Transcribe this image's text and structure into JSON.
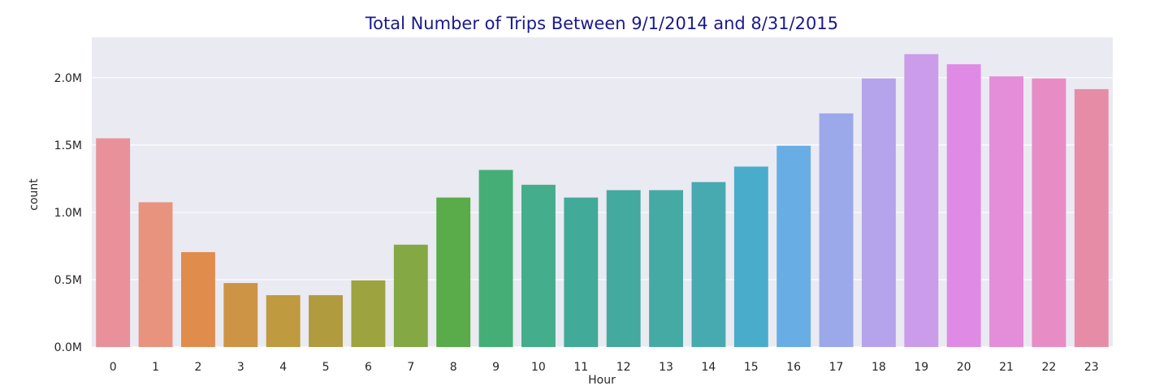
{
  "chart_data": {
    "type": "bar",
    "title": "Total Number of Trips Between 9/1/2014 and 8/31/2015",
    "xlabel": "Hour",
    "ylabel": "count",
    "categories": [
      "0",
      "1",
      "2",
      "3",
      "4",
      "5",
      "6",
      "7",
      "8",
      "9",
      "10",
      "11",
      "12",
      "13",
      "14",
      "15",
      "16",
      "17",
      "18",
      "19",
      "20",
      "21",
      "22",
      "23"
    ],
    "values": [
      1550000,
      1075000,
      705000,
      475000,
      385000,
      385000,
      495000,
      760000,
      1110000,
      1315000,
      1205000,
      1110000,
      1165000,
      1165000,
      1225000,
      1340000,
      1495000,
      1735000,
      1995000,
      2175000,
      2100000,
      2010000,
      1995000,
      1915000
    ],
    "ylim": [
      0,
      2300000
    ],
    "yticks": [
      {
        "value": 0,
        "label": "0.0M"
      },
      {
        "value": 500000,
        "label": "0.5M"
      },
      {
        "value": 1000000,
        "label": "1.0M"
      },
      {
        "value": 1500000,
        "label": "1.5M"
      },
      {
        "value": 2000000,
        "label": "2.0M"
      }
    ],
    "grid": true,
    "legend": "none",
    "colors": [
      "#e8919a",
      "#e8937e",
      "#e08c4c",
      "#cd9446",
      "#bf9a3f",
      "#b09b3f",
      "#9da33f",
      "#84a844",
      "#5aab49",
      "#45ae76",
      "#44ae8c",
      "#42aa98",
      "#44aa9f",
      "#45aaa4",
      "#47aab1",
      "#4aaccb",
      "#68aee4",
      "#9ba8ea",
      "#b5a4ec",
      "#ca9cea",
      "#df8be5",
      "#e48dd8",
      "#e78cc4",
      "#e78ca7"
    ],
    "title_color": "#1a1a8c",
    "background_color": "#eaeaf2"
  }
}
